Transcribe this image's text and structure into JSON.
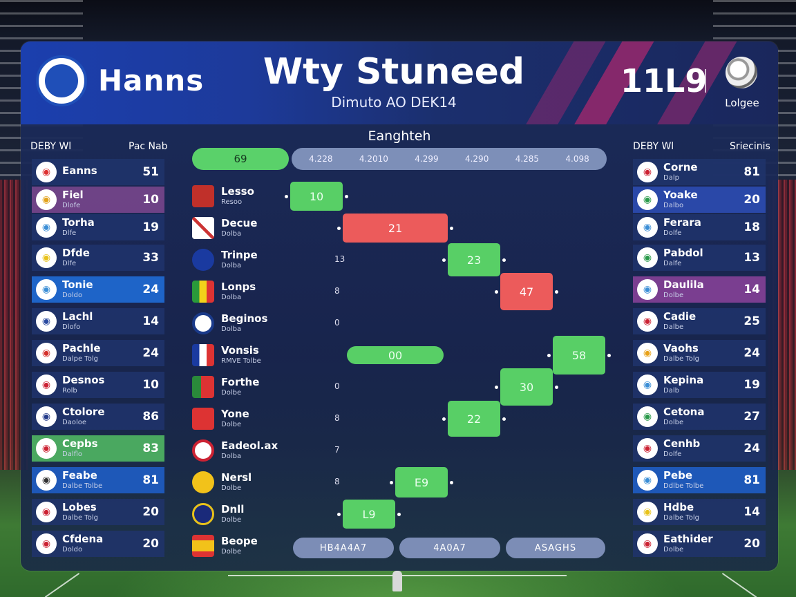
{
  "header": {
    "home_team": "Hanns",
    "title": "Wty Stuneed",
    "subtitle": "Dimuto AO DEK14",
    "score": "11L9",
    "league": "Lolgee"
  },
  "left_table": {
    "header_left": "DEBY Wl",
    "header_right": "Pac Nab",
    "rows": [
      {
        "name": "Eanns",
        "sub": "",
        "value": "51"
      },
      {
        "name": "Fiel",
        "sub": "Dlofe",
        "value": "10"
      },
      {
        "name": "Torha",
        "sub": "Dlfe",
        "value": "19"
      },
      {
        "name": "Dfde",
        "sub": "Dlfe",
        "value": "33"
      },
      {
        "name": "Tonie",
        "sub": "Doldo",
        "value": "24"
      },
      {
        "name": "Lachl",
        "sub": "Dlofo",
        "value": "14"
      },
      {
        "name": "Pachle",
        "sub": "Dalpe Tolg",
        "value": "24"
      },
      {
        "name": "Desnos",
        "sub": "Rolb",
        "value": "10"
      },
      {
        "name": "Ctolore",
        "sub": "Daoloe",
        "value": "86"
      },
      {
        "name": "Cepbs",
        "sub": "Dalflo",
        "value": "83"
      },
      {
        "name": "Feabe",
        "sub": "Dalbe Tolbe",
        "value": "81"
      },
      {
        "name": "Lobes",
        "sub": "Dalbe Tolg",
        "value": "20"
      },
      {
        "name": "Cfdena",
        "sub": "Doldo",
        "value": "20"
      }
    ]
  },
  "right_table": {
    "header_left": "DEBY Wl",
    "header_right": "Sriecinis",
    "rows": [
      {
        "name": "Corne",
        "sub": "Dalp",
        "value": "81"
      },
      {
        "name": "Yoake",
        "sub": "Dalbo",
        "value": "20"
      },
      {
        "name": "Ferara",
        "sub": "Dolfe",
        "value": "18"
      },
      {
        "name": "Pabdol",
        "sub": "Dalfe",
        "value": "13"
      },
      {
        "name": "Daulila",
        "sub": "Dolbe",
        "value": "14"
      },
      {
        "name": "Cadie",
        "sub": "Dalbe",
        "value": "25"
      },
      {
        "name": "Vaohs",
        "sub": "Dalbe Tolg",
        "value": "24"
      },
      {
        "name": "Kepina",
        "sub": "Dalb",
        "value": "19"
      },
      {
        "name": "Cetona",
        "sub": "Dolbe",
        "value": "27"
      },
      {
        "name": "Cenhb",
        "sub": "Dolfe",
        "value": "24"
      },
      {
        "name": "Pebe",
        "sub": "Ddlbe Tolbe",
        "value": "81"
      },
      {
        "name": "Hdbe",
        "sub": "Dalbe Tolg",
        "value": "14"
      },
      {
        "name": "Eathider",
        "sub": "Dolbe",
        "value": "20"
      }
    ]
  },
  "center": {
    "heading": "Eanghteh",
    "top_green": "69",
    "top_ticks": [
      "4.228",
      "4.2010",
      "4.299",
      "4.290",
      "4.285",
      "4.098"
    ],
    "matches": [
      {
        "name": "Lesso",
        "sub": "Resoo",
        "num": "",
        "box": "10",
        "color": "g"
      },
      {
        "name": "Decue",
        "sub": "Dolba",
        "num": "",
        "box": "21",
        "color": "r"
      },
      {
        "name": "Trinpe",
        "sub": "Dolba",
        "num": "13",
        "box": "23",
        "color": "g"
      },
      {
        "name": "Lonps",
        "sub": "Dolba",
        "num": "8",
        "box": "47",
        "color": "r"
      },
      {
        "name": "Beginos",
        "sub": "Dolba",
        "num": "0",
        "box": "",
        "color": ""
      },
      {
        "name": "Vonsis",
        "sub": "RMVE Tolbe",
        "num": "",
        "box": "58",
        "color": "g",
        "extra": "00"
      },
      {
        "name": "Forthe",
        "sub": "Dolbe",
        "num": "0",
        "box": "30",
        "color": "g"
      },
      {
        "name": "Yone",
        "sub": "Dolbe",
        "num": "8",
        "box": "22",
        "color": "g"
      },
      {
        "name": "Eadeol.ax",
        "sub": "Dolba",
        "num": "7",
        "box": "",
        "color": ""
      },
      {
        "name": "Nersl",
        "sub": "Dolbe",
        "num": "8",
        "box": "E9",
        "color": "g"
      },
      {
        "name": "Dnll",
        "sub": "Dolbe",
        "num": "",
        "box": "L9",
        "color": "g"
      },
      {
        "name": "Beope",
        "sub": "Dolbe",
        "num": "",
        "box": "",
        "color": ""
      }
    ],
    "bottom_pills": [
      "HB4A4A7",
      "4A0A7",
      "ASAGHS"
    ]
  }
}
